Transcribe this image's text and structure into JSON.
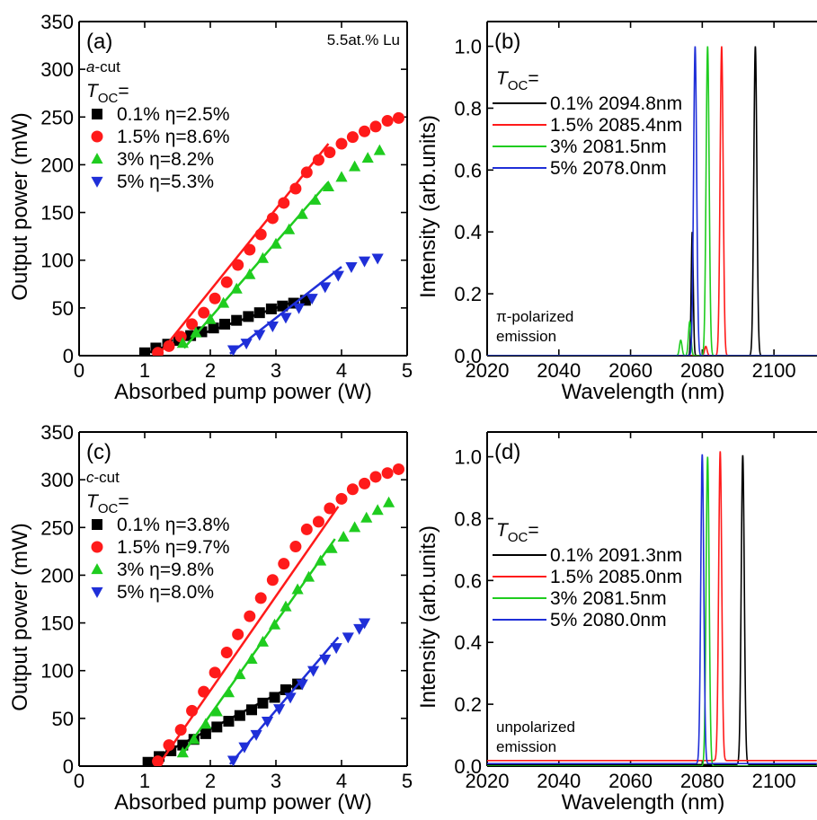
{
  "colors": {
    "black": "#000000",
    "red": "#ff1a1a",
    "green": "#1fcc1f",
    "blue": "#1f2fd8"
  },
  "chart_data": [
    {
      "id": "a",
      "type": "scatter",
      "panel_label": "(a)",
      "xlabel": "Absorbed pump power (W)",
      "ylabel": "Output power (mW)",
      "xlim": [
        0,
        5
      ],
      "ylim": [
        0,
        350
      ],
      "xticks": [
        "0",
        "1",
        "2",
        "3",
        "4",
        "5"
      ],
      "yticks": [
        "0",
        "50",
        "100",
        "150",
        "200",
        "250",
        "300",
        "350"
      ],
      "annotations": [
        "5.5at.% Lu",
        "-cut"
      ],
      "cut_letter": "a",
      "toc_label": "T",
      "toc_sub": "OC",
      "toc_eq": "=",
      "series": [
        {
          "name": "0.1% η=2.5%",
          "color": "#000000",
          "marker": "square",
          "x": [
            1.0,
            1.17,
            1.35,
            1.52,
            1.7,
            1.87,
            2.05,
            2.22,
            2.4,
            2.58,
            2.75,
            2.93,
            3.1,
            3.27,
            3.45
          ],
          "y": [
            3,
            8,
            12,
            16,
            21,
            25,
            29,
            33,
            37,
            41,
            45,
            49,
            52,
            55,
            58
          ],
          "fit": [
            [
              1.0,
              2
            ],
            [
              3.5,
              62
            ]
          ]
        },
        {
          "name": "1.5% η=8.6%",
          "color": "#ff1a1a",
          "marker": "circle",
          "x": [
            1.2,
            1.37,
            1.55,
            1.72,
            1.9,
            2.07,
            2.25,
            2.42,
            2.6,
            2.77,
            2.95,
            3.12,
            3.3,
            3.47,
            3.65,
            3.82,
            4.0,
            4.17,
            4.35,
            4.52,
            4.7,
            4.87
          ],
          "y": [
            3,
            10,
            20,
            33,
            45,
            60,
            77,
            95,
            111,
            127,
            144,
            160,
            175,
            192,
            205,
            213,
            222,
            229,
            235,
            240,
            246,
            249
          ],
          "fit": [
            [
              1.2,
              0
            ],
            [
              3.8,
              222
            ]
          ]
        },
        {
          "name": "3% η=8.2%",
          "color": "#1fcc1f",
          "marker": "triangle-up",
          "x": [
            1.58,
            1.78,
            2.0,
            2.2,
            2.4,
            2.6,
            2.8,
            3.0,
            3.2,
            3.4,
            3.6,
            3.8,
            4.0,
            4.2,
            4.4,
            4.58
          ],
          "y": [
            13,
            24,
            38,
            55,
            70,
            85,
            102,
            117,
            132,
            148,
            163,
            177,
            187,
            198,
            207,
            215
          ],
          "fit": [
            [
              1.6,
              8
            ],
            [
              3.8,
              182
            ]
          ]
        },
        {
          "name": "5% η=5.3%",
          "color": "#1f2fd8",
          "marker": "triangle-down",
          "x": [
            2.35,
            2.55,
            2.75,
            2.95,
            3.15,
            3.35,
            3.55,
            3.75,
            3.95,
            4.15,
            4.35,
            4.55
          ],
          "y": [
            6,
            13,
            22,
            31,
            40,
            50,
            60,
            72,
            84,
            93,
            99,
            102
          ],
          "fit": [
            [
              2.3,
              2
            ],
            [
              4.0,
              93
            ]
          ]
        }
      ]
    },
    {
      "id": "b",
      "type": "line",
      "panel_label": "(b)",
      "xlabel": "Wavelength (nm)",
      "ylabel": "Intensity (arb.units)",
      "xlim": [
        2020,
        2112
      ],
      "ylim": [
        0,
        1.08
      ],
      "xticks": [
        "2020",
        "2040",
        "2060",
        "2080",
        "2100"
      ],
      "yticks": [
        "0.0",
        "0.2",
        "0.4",
        "0.6",
        "0.8",
        "1.0"
      ],
      "annotations": [
        "π-polarized",
        "emission"
      ],
      "toc_label": "T",
      "toc_sub": "OC",
      "toc_eq": "=",
      "series": [
        {
          "name": "0.1% 2094.8nm",
          "color": "#000000",
          "peaks": [
            [
              2094.8,
              1.0,
              0.6
            ],
            [
              2077.2,
              0.4,
              0.4
            ]
          ]
        },
        {
          "name": "1.5% 2085.4nm",
          "color": "#ff1a1a",
          "peaks": [
            [
              2085.4,
              1.0,
              0.6
            ],
            [
              2081.0,
              0.03,
              0.5
            ]
          ]
        },
        {
          "name": "3% 2081.5nm",
          "color": "#1fcc1f",
          "peaks": [
            [
              2081.5,
              1.0,
              0.6
            ],
            [
              2076.5,
              0.11,
              0.5
            ],
            [
              2074.0,
              0.05,
              0.5
            ]
          ]
        },
        {
          "name": "5% 2078.0nm",
          "color": "#1f2fd8",
          "peaks": [
            [
              2078.0,
              1.0,
              0.6
            ]
          ]
        }
      ]
    },
    {
      "id": "c",
      "type": "scatter",
      "panel_label": "(c)",
      "xlabel": "Absorbed pump power (W)",
      "ylabel": "Output power (mW)",
      "xlim": [
        0,
        5
      ],
      "ylim": [
        0,
        350
      ],
      "xticks": [
        "0",
        "1",
        "2",
        "3",
        "4",
        "5"
      ],
      "yticks": [
        "0",
        "50",
        "100",
        "150",
        "200",
        "250",
        "300",
        "350"
      ],
      "annotations": [
        "-cut"
      ],
      "cut_letter": "c",
      "toc_label": "T",
      "toc_sub": "OC",
      "toc_eq": "=",
      "series": [
        {
          "name": "0.1% η=3.8%",
          "color": "#000000",
          "marker": "square",
          "x": [
            1.05,
            1.22,
            1.4,
            1.58,
            1.75,
            1.93,
            2.1,
            2.28,
            2.45,
            2.63,
            2.8,
            2.98,
            3.15,
            3.33
          ],
          "y": [
            4,
            10,
            16,
            22,
            28,
            34,
            41,
            47,
            53,
            59,
            66,
            72,
            80,
            86
          ],
          "fit": [
            [
              1.0,
              3
            ],
            [
              3.45,
              91
            ]
          ]
        },
        {
          "name": "1.5% η=9.7%",
          "color": "#ff1a1a",
          "marker": "circle",
          "x": [
            1.2,
            1.37,
            1.55,
            1.72,
            1.9,
            2.07,
            2.25,
            2.42,
            2.6,
            2.77,
            2.95,
            3.12,
            3.3,
            3.47,
            3.65,
            3.82,
            4.0,
            4.17,
            4.35,
            4.52,
            4.7,
            4.87
          ],
          "y": [
            5,
            22,
            38,
            58,
            78,
            98,
            119,
            138,
            157,
            176,
            195,
            212,
            230,
            248,
            256,
            270,
            280,
            290,
            296,
            303,
            307,
            311
          ],
          "fit": [
            [
              1.2,
              0
            ],
            [
              3.95,
              272
            ]
          ]
        },
        {
          "name": "3% η=9.8%",
          "color": "#1fcc1f",
          "marker": "triangle-up",
          "x": [
            1.58,
            1.75,
            1.93,
            2.1,
            2.28,
            2.45,
            2.63,
            2.8,
            2.98,
            3.15,
            3.33,
            3.5,
            3.68,
            3.85,
            4.03,
            4.2,
            4.38,
            4.55,
            4.72
          ],
          "y": [
            14,
            28,
            44,
            57,
            77,
            96,
            112,
            130,
            148,
            167,
            185,
            198,
            215,
            228,
            240,
            250,
            260,
            268,
            276
          ],
          "fit": [
            [
              1.55,
              10
            ],
            [
              3.9,
              238
            ]
          ]
        },
        {
          "name": "5% η=8.0%",
          "color": "#1f2fd8",
          "marker": "triangle-down",
          "x": [
            2.35,
            2.52,
            2.7,
            2.87,
            3.05,
            3.22,
            3.4,
            3.57,
            3.75,
            3.92,
            4.1,
            4.27,
            4.35
          ],
          "y": [
            6,
            20,
            33,
            47,
            60,
            72,
            86,
            100,
            112,
            124,
            135,
            144,
            150
          ],
          "fit": [
            [
              2.3,
              2
            ],
            [
              3.95,
              135
            ]
          ]
        }
      ]
    },
    {
      "id": "d",
      "type": "line",
      "panel_label": "(d)",
      "xlabel": "Wavelength (nm)",
      "ylabel": "Intensity (arb.units)",
      "xlim": [
        2020,
        2112
      ],
      "ylim": [
        0,
        1.08
      ],
      "xticks": [
        "2020",
        "2040",
        "2060",
        "2080",
        "2100"
      ],
      "yticks": [
        "0.0",
        "0.2",
        "0.4",
        "0.6",
        "0.8",
        "1.0"
      ],
      "annotations": [
        "unpolarized",
        "emission"
      ],
      "toc_label": "T",
      "toc_sub": "OC",
      "toc_eq": "=",
      "baselines": {
        "#000000": 0.005,
        "#ff1a1a": 0.018,
        "#1fcc1f": 0.0,
        "#1f2fd8": 0.008
      },
      "series": [
        {
          "name": "0.1% 2091.3nm",
          "color": "#000000",
          "peaks": [
            [
              2091.3,
              1.0,
              0.6
            ]
          ]
        },
        {
          "name": "1.5% 2085.0nm",
          "color": "#ff1a1a",
          "peaks": [
            [
              2085.0,
              1.0,
              0.6
            ]
          ]
        },
        {
          "name": "3% 2081.5nm",
          "color": "#1fcc1f",
          "peaks": [
            [
              2081.5,
              1.0,
              0.6
            ]
          ]
        },
        {
          "name": "5% 2080.0nm",
          "color": "#1f2fd8",
          "peaks": [
            [
              2080.0,
              1.0,
              0.6
            ]
          ]
        }
      ]
    }
  ]
}
